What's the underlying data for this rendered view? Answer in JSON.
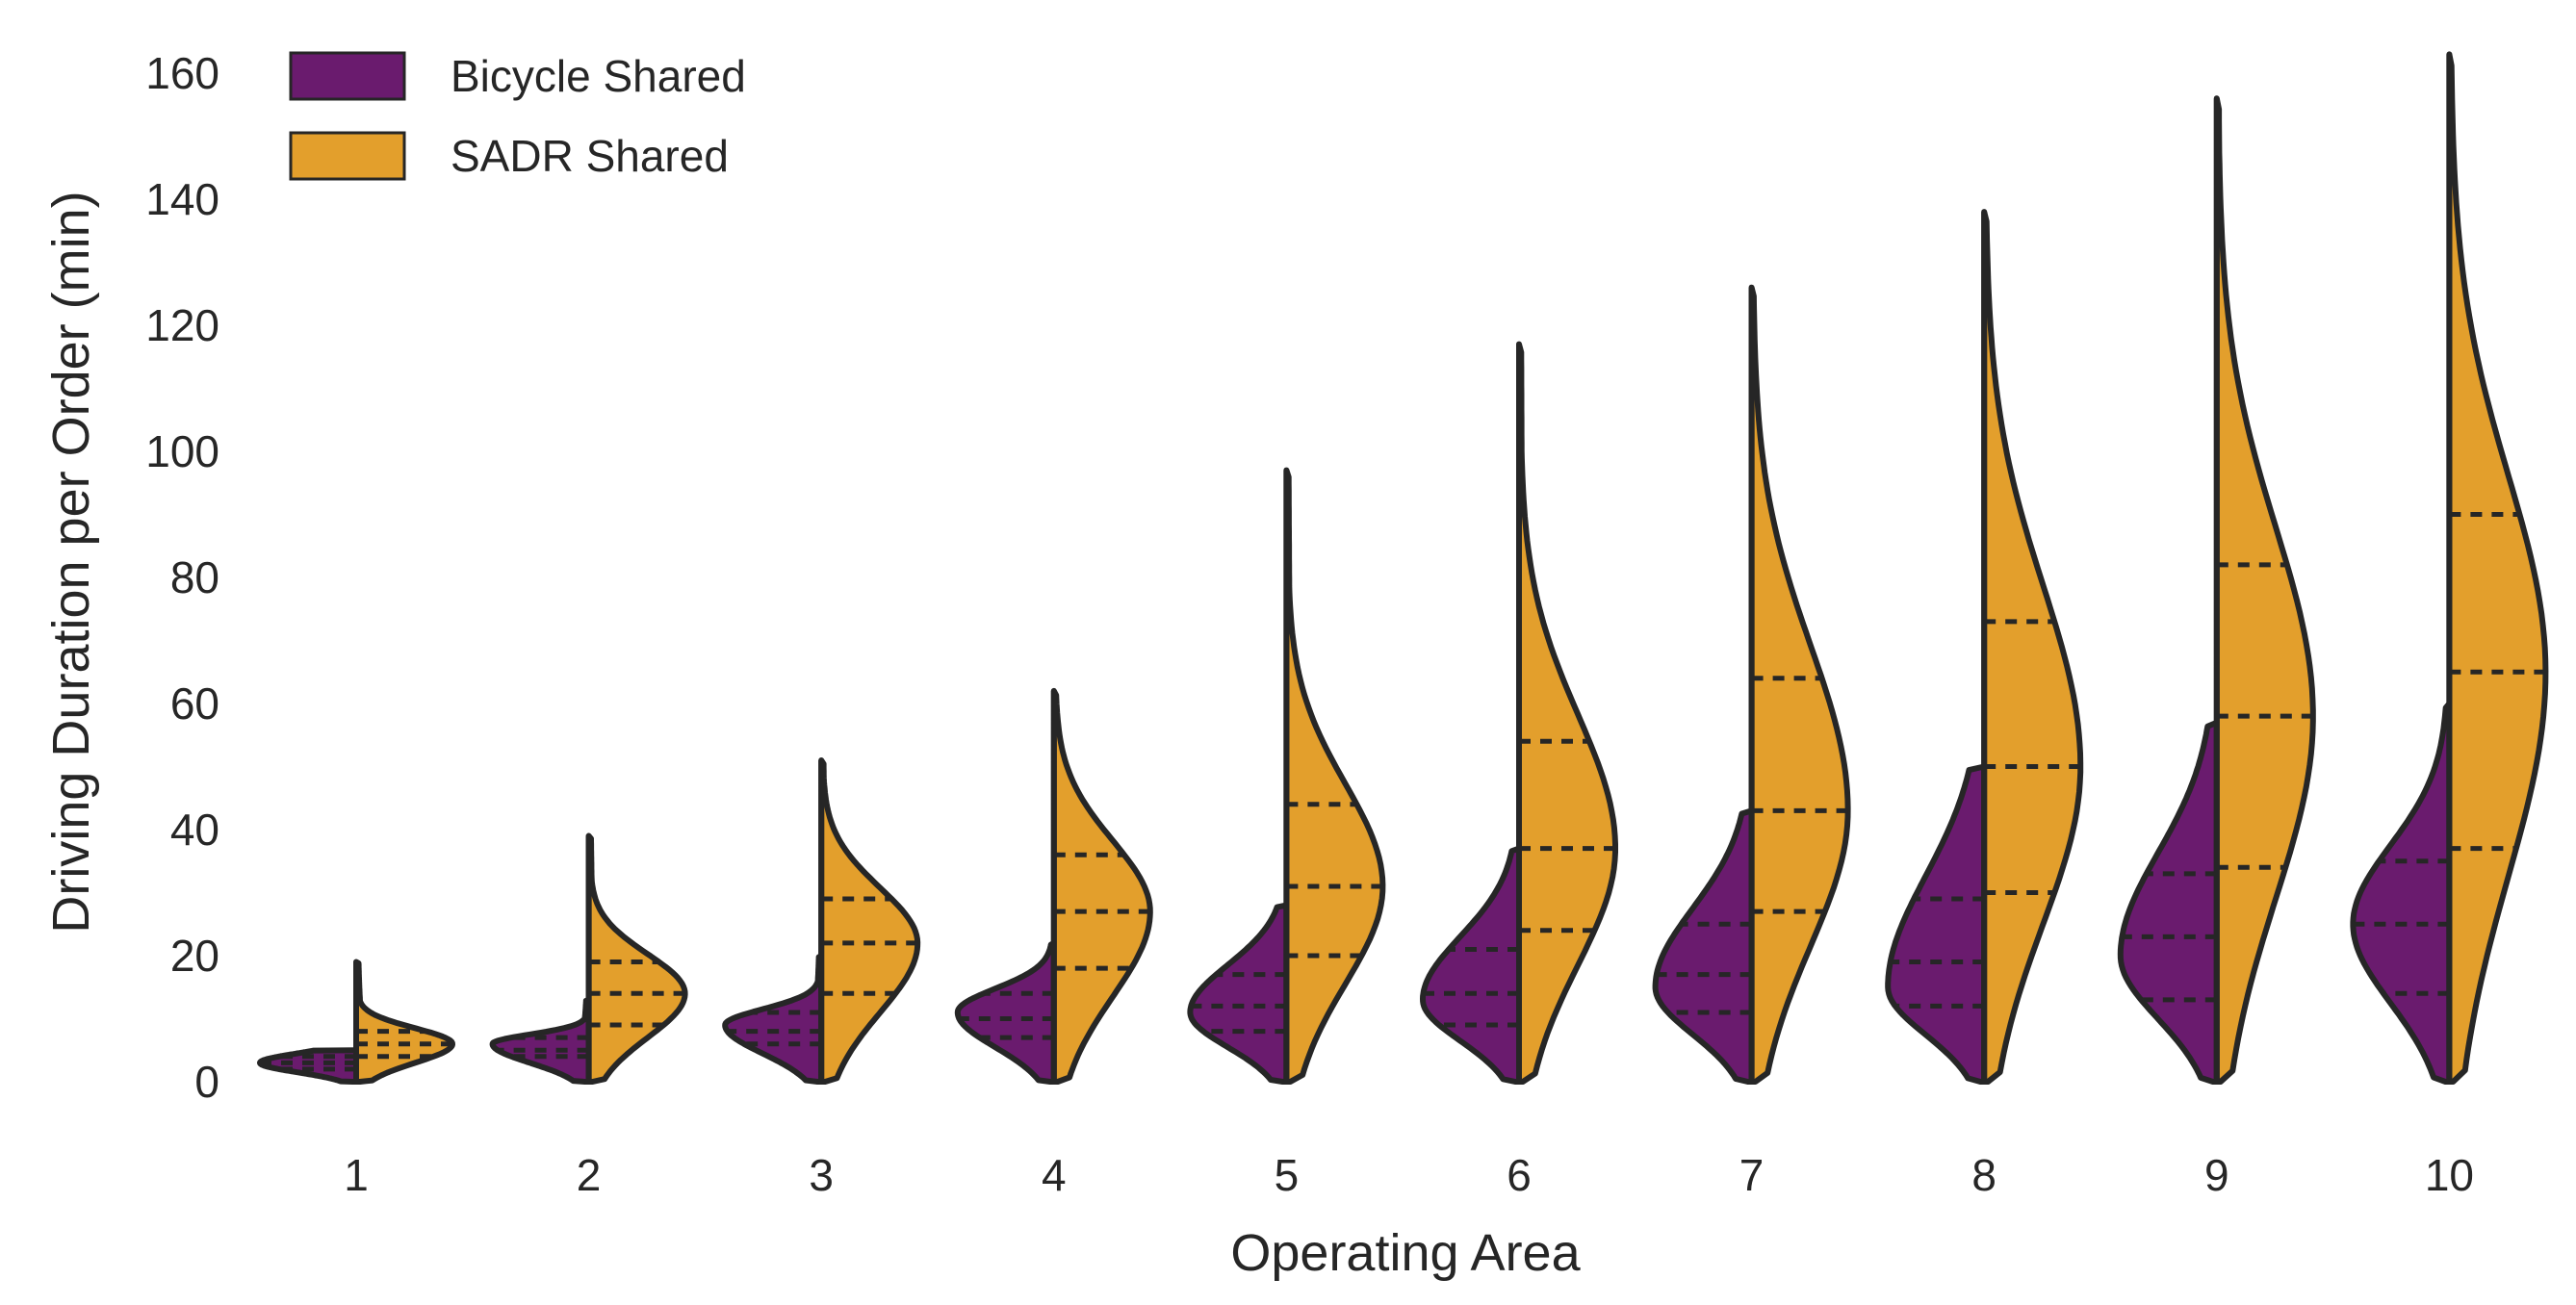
{
  "chart_data": {
    "type": "violin",
    "title": "",
    "xlabel": "Operating Area",
    "ylabel": "Driving Duration per Order (min)",
    "categories": [
      "1",
      "2",
      "3",
      "4",
      "5",
      "6",
      "7",
      "8",
      "9",
      "10"
    ],
    "yticks": [
      "0",
      "20",
      "40",
      "60",
      "80",
      "100",
      "120",
      "140",
      "160"
    ],
    "ylim": [
      -8,
      170
    ],
    "grid": false,
    "legend_position": "top-left",
    "series": [
      {
        "name": "Bicycle Shared",
        "color": "#6a1b6e",
        "side": "left",
        "stats": [
          {
            "max": 5,
            "q1": 2,
            "median": 3,
            "q3": 4,
            "mode": 3
          },
          {
            "max": 13,
            "q1": 4,
            "median": 5,
            "q3": 7,
            "mode": 6
          },
          {
            "max": 20,
            "q1": 6,
            "median": 8,
            "q3": 11,
            "mode": 9
          },
          {
            "max": 22,
            "q1": 7,
            "median": 10,
            "q3": 14,
            "mode": 11
          },
          {
            "max": 28,
            "q1": 8,
            "median": 12,
            "q3": 17,
            "mode": 11
          },
          {
            "max": 37,
            "q1": 9,
            "median": 14,
            "q3": 21,
            "mode": 13
          },
          {
            "max": 43,
            "q1": 11,
            "median": 17,
            "q3": 25,
            "mode": 15
          },
          {
            "max": 50,
            "q1": 12,
            "median": 19,
            "q3": 29,
            "mode": 15
          },
          {
            "max": 57,
            "q1": 13,
            "median": 23,
            "q3": 33,
            "mode": 20
          },
          {
            "max": 60,
            "q1": 14,
            "median": 25,
            "q3": 35,
            "mode": 25
          }
        ]
      },
      {
        "name": "SADR Shared",
        "color": "#e39f2c",
        "side": "right",
        "stats": [
          {
            "max": 19,
            "q1": 4,
            "median": 6,
            "q3": 8,
            "mode": 6
          },
          {
            "max": 39,
            "q1": 9,
            "median": 14,
            "q3": 19,
            "mode": 14
          },
          {
            "max": 51,
            "q1": 14,
            "median": 22,
            "q3": 29,
            "mode": 22
          },
          {
            "max": 62,
            "q1": 18,
            "median": 27,
            "q3": 36,
            "mode": 27
          },
          {
            "max": 97,
            "q1": 20,
            "median": 31,
            "q3": 44,
            "mode": 31
          },
          {
            "max": 117,
            "q1": 24,
            "median": 37,
            "q3": 54,
            "mode": 37
          },
          {
            "max": 126,
            "q1": 27,
            "median": 43,
            "q3": 64,
            "mode": 43
          },
          {
            "max": 138,
            "q1": 30,
            "median": 50,
            "q3": 73,
            "mode": 50
          },
          {
            "max": 156,
            "q1": 34,
            "median": 58,
            "q3": 82,
            "mode": 58
          },
          {
            "max": 163,
            "q1": 37,
            "median": 65,
            "q3": 90,
            "mode": 65
          }
        ]
      }
    ]
  }
}
